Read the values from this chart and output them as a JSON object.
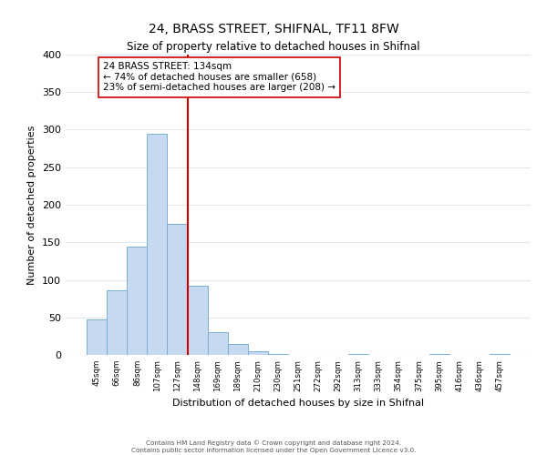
{
  "title": "24, BRASS STREET, SHIFNAL, TF11 8FW",
  "subtitle": "Size of property relative to detached houses in Shifnal",
  "xlabel": "Distribution of detached houses by size in Shifnal",
  "ylabel": "Number of detached properties",
  "bar_values": [
    47,
    86,
    144,
    295,
    174,
    92,
    30,
    15,
    5,
    1,
    0,
    0,
    0,
    1,
    0,
    0,
    0,
    1,
    0,
    0,
    1
  ],
  "bin_labels": [
    "45sqm",
    "66sqm",
    "86sqm",
    "107sqm",
    "127sqm",
    "148sqm",
    "169sqm",
    "189sqm",
    "210sqm",
    "230sqm",
    "251sqm",
    "272sqm",
    "292sqm",
    "313sqm",
    "333sqm",
    "354sqm",
    "375sqm",
    "395sqm",
    "416sqm",
    "436sqm",
    "457sqm"
  ],
  "bar_color": "#c6d9f0",
  "bar_edge_color": "#7bafd4",
  "vline_color": "#cc0000",
  "annotation_line1": "24 BRASS STREET: 134sqm",
  "annotation_line2": "← 74% of detached houses are smaller (658)",
  "annotation_line3": "23% of semi-detached houses are larger (208) →",
  "annotation_box_color": "#ffffff",
  "annotation_box_edge": "#cc0000",
  "ylim": [
    0,
    400
  ],
  "yticks": [
    0,
    50,
    100,
    150,
    200,
    250,
    300,
    350,
    400
  ],
  "footer_line1": "Contains HM Land Registry data © Crown copyright and database right 2024.",
  "footer_line2": "Contains public sector information licensed under the Open Government Licence v3.0.",
  "background_color": "#ffffff",
  "grid_color": "#dde8f0"
}
